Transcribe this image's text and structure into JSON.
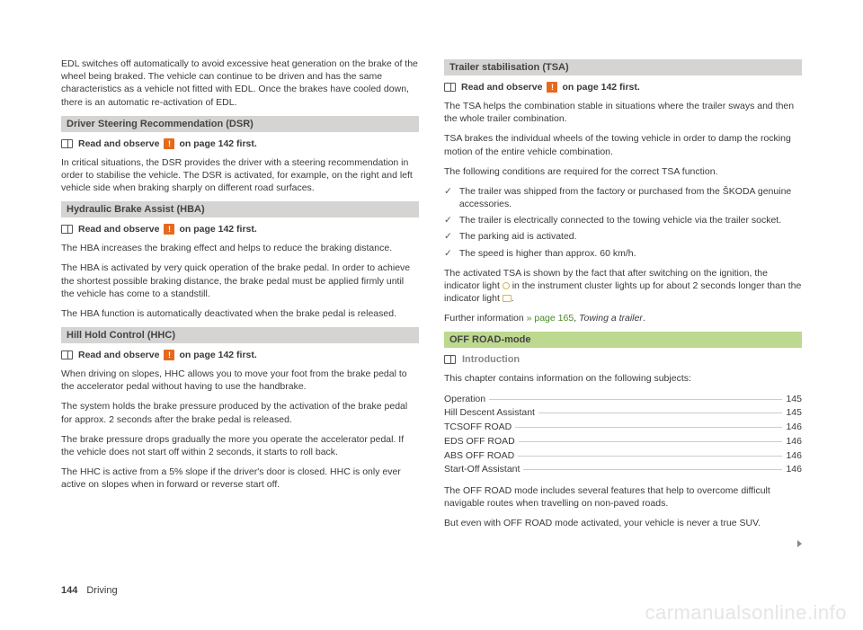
{
  "left": {
    "intro_p": "EDL switches off automatically to avoid excessive heat generation on the brake of the wheel being braked. The vehicle can continue to be driven and has the same characteristics as a vehicle not fitted with EDL. Once the brakes have cooled down, there is an automatic re-activation of EDL.",
    "dsr": {
      "title": "Driver Steering Recommendation (DSR)",
      "read_pre": "Read and observe",
      "read_post": "on page 142 first.",
      "p1": "In critical situations, the DSR provides the driver with a steering recommendation in order to stabilise the vehicle. The DSR is activated, for example, on the right and left vehicle side when braking sharply on different road surfaces."
    },
    "hba": {
      "title": "Hydraulic Brake Assist (HBA)",
      "read_pre": "Read and observe",
      "read_post": "on page 142 first.",
      "p1": "The HBA increases the braking effect and helps to reduce the braking distance.",
      "p2": "The HBA is activated by very quick operation of the brake pedal. In order to achieve the shortest possible braking distance, the brake pedal must be applied firmly until the vehicle has come to a standstill.",
      "p3": "The HBA function is automatically deactivated when the brake pedal is released."
    },
    "hhc": {
      "title": "Hill Hold Control (HHC)",
      "read_pre": "Read and observe",
      "read_post": "on page 142 first.",
      "p1": "When driving on slopes, HHC allows you to move your foot from the brake pedal to the accelerator pedal without having to use the handbrake.",
      "p2": "The system holds the brake pressure produced by the activation of the brake pedal for approx. 2 seconds after the brake pedal is released.",
      "p3": "The brake pressure drops gradually the more you operate the accelerator pedal. If the vehicle does not start off within 2 seconds, it starts to roll back.",
      "p4": "The HHC is active from a 5% slope if the driver's door is closed. HHC is only ever active on slopes when in forward or reverse start off."
    }
  },
  "right": {
    "tsa": {
      "title": "Trailer stabilisation (TSA)",
      "read_pre": "Read and observe",
      "read_post": "on page 142 first.",
      "p1": "The TSA helps the combination stable in situations where the trailer sways and then the whole trailer combination.",
      "p2": "TSA brakes the individual wheels of the towing vehicle in order to damp the rocking motion of the entire vehicle combination.",
      "p3": "The following conditions are required for the correct TSA function.",
      "items": [
        "The trailer was shipped from the factory or purchased from the ŠKODA genuine accessories.",
        "The trailer is electrically connected to the towing vehicle via the trailer socket.",
        "The parking aid is activated.",
        "The speed is higher than approx. 60 km/h."
      ],
      "p4a": "The activated TSA is shown by the fact that after switching on the ignition, the indicator light ",
      "p4b": " in the instrument cluster lights up for about 2 seconds longer than the indicator light ",
      "p4c": ".",
      "further_a": "Further information ",
      "further_link": "» page 165",
      "further_b": ", ",
      "further_i": "Towing a trailer",
      "further_c": "."
    },
    "offroad": {
      "title": "OFF ROAD-mode",
      "intro": "Introduction",
      "p1": "This chapter contains information on the following subjects:",
      "toc": [
        {
          "label": "Operation",
          "page": "145"
        },
        {
          "label": "Hill Descent Assistant",
          "page": "145"
        },
        {
          "label": "TCSOFF ROAD",
          "page": "146"
        },
        {
          "label": "EDS OFF ROAD",
          "page": "146"
        },
        {
          "label": "ABS OFF ROAD",
          "page": "146"
        },
        {
          "label": "Start-Off Assistant",
          "page": "146"
        }
      ],
      "p2": "The OFF ROAD mode includes several features that help to overcome difficult navigable routes when travelling on non-paved roads.",
      "p3": "But even with OFF ROAD mode activated, your vehicle is never a true SUV."
    }
  },
  "footer": {
    "page": "144",
    "section": "Driving"
  },
  "watermark": "carmanualsonline.info"
}
